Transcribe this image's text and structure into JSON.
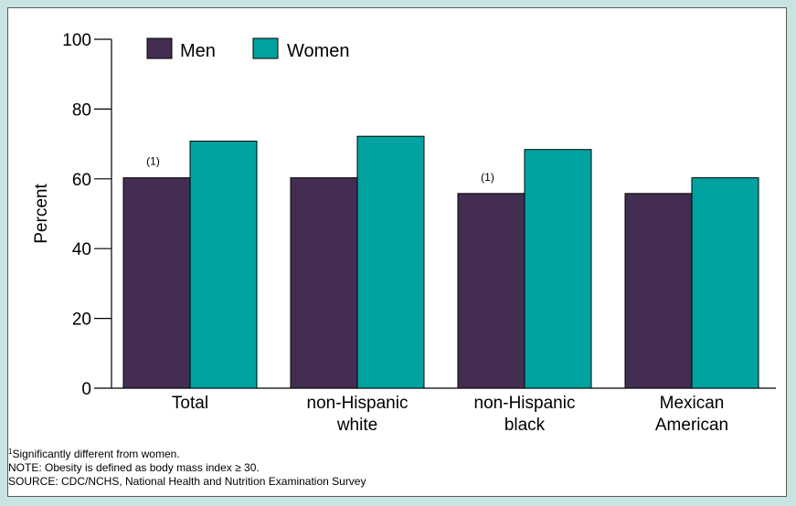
{
  "chart_data": {
    "type": "bar",
    "categories": [
      [
        "Total"
      ],
      [
        "non-Hispanic",
        "white"
      ],
      [
        "non-Hispanic",
        "black"
      ],
      [
        "Mexican",
        "American"
      ]
    ],
    "series": [
      {
        "name": "Men",
        "values": [
          60.3,
          60.3,
          55.8,
          55.8
        ],
        "color": "#432e52"
      },
      {
        "name": "Women",
        "values": [
          70.8,
          72.2,
          68.4,
          60.3
        ],
        "color": "#00a39f"
      }
    ],
    "annotations": [
      {
        "category_index": 0,
        "series_index": 0,
        "text": "(1)"
      },
      {
        "category_index": 2,
        "series_index": 0,
        "text": "(1)"
      }
    ],
    "ylabel": "Percent",
    "ylim": [
      0,
      100
    ],
    "yticks": [
      0,
      20,
      40,
      60,
      80,
      100
    ],
    "grid": false,
    "legend_position": "top-left"
  },
  "notes": {
    "footnote_marker": "1",
    "footnote_text": "Significantly different from women.",
    "note": "NOTE: Obesity is defined as body mass index ≥ 30.",
    "source": "SOURCE: CDC/NCHS, National Health and Nutrition Examination Survey"
  },
  "colors": {
    "page_background": "#c7e4e2",
    "panel_background": "#ffffff"
  }
}
